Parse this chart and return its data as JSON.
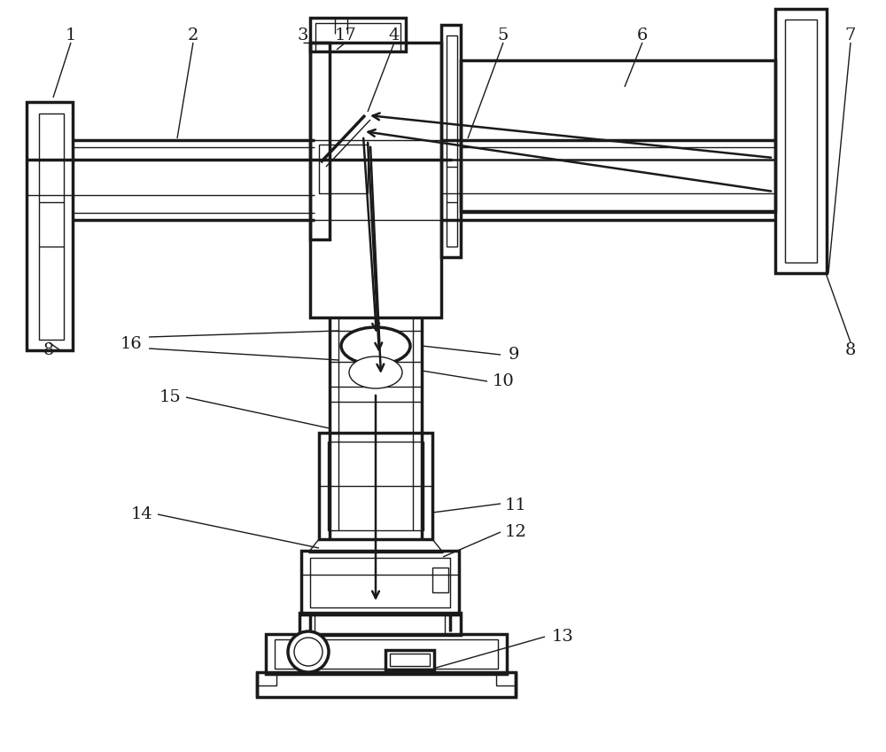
{
  "bg_color": "#ffffff",
  "lc": "#1a1a1a",
  "lw_thin": 1.0,
  "lw_med": 1.8,
  "lw_thick": 2.5,
  "label_fs": 14,
  "fig_w": 10.0,
  "fig_h": 8.48
}
